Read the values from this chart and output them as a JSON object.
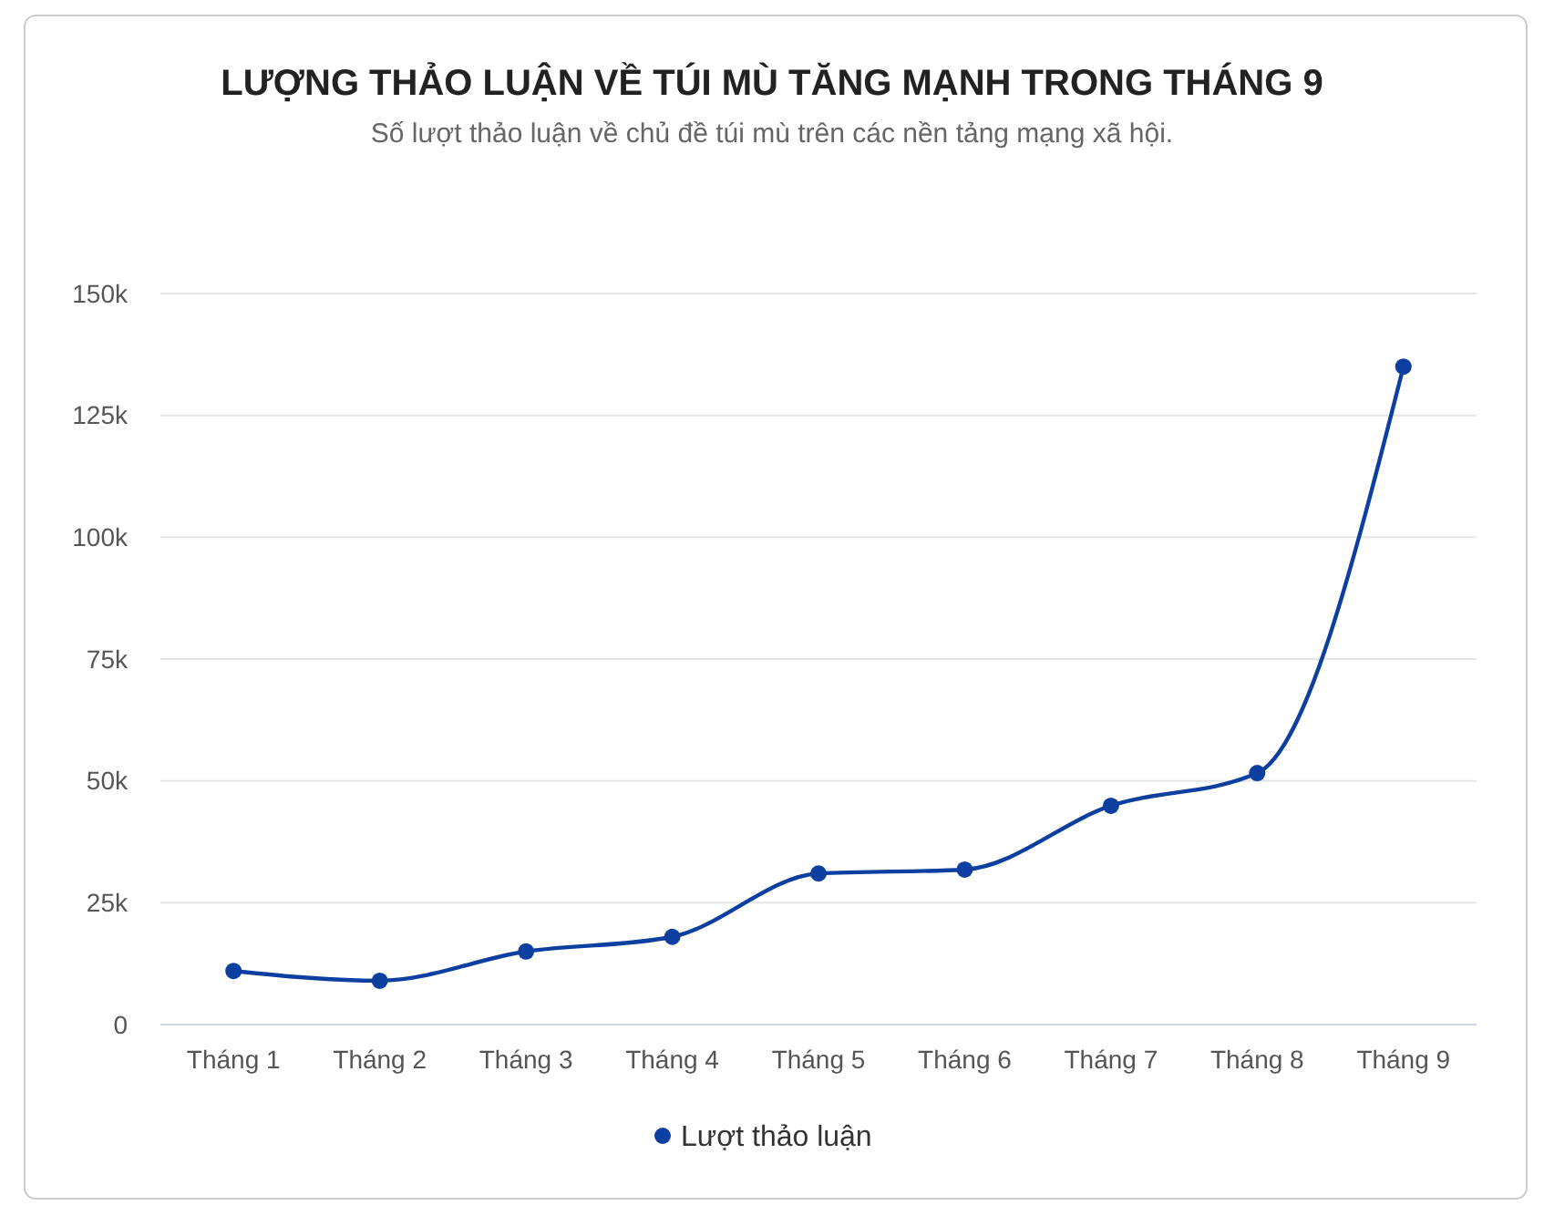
{
  "chart_data": {
    "type": "line",
    "title": "LƯỢNG THẢO LUẬN VỀ TÚI MÙ TĂNG MẠNH TRONG THÁNG 9",
    "subtitle": "Số lượt thảo luận về chủ đề túi mù trên các nền tảng mạng xã hội.",
    "categories": [
      "Tháng 1",
      "Tháng 2",
      "Tháng 3",
      "Tháng 4",
      "Tháng 5",
      "Tháng 6",
      "Tháng 7",
      "Tháng 8",
      "Tháng 9"
    ],
    "series": [
      {
        "name": "Lượt thảo luận",
        "color": "#0d3fa0",
        "values": [
          11000,
          9000,
          15000,
          18000,
          31000,
          31800,
          44900,
          51600,
          135000
        ]
      }
    ],
    "ylim": [
      0,
      150000
    ],
    "yticks": [
      {
        "value": 0,
        "label": "0"
      },
      {
        "value": 25000,
        "label": "25k"
      },
      {
        "value": 50000,
        "label": "50k"
      },
      {
        "value": 75000,
        "label": "75k"
      },
      {
        "value": 100000,
        "label": "100k"
      },
      {
        "value": 125000,
        "label": "125k"
      },
      {
        "value": 150000,
        "label": "150k"
      }
    ],
    "grid": "y",
    "legend": "bottom",
    "marker": "circle",
    "line_style": "solid"
  }
}
